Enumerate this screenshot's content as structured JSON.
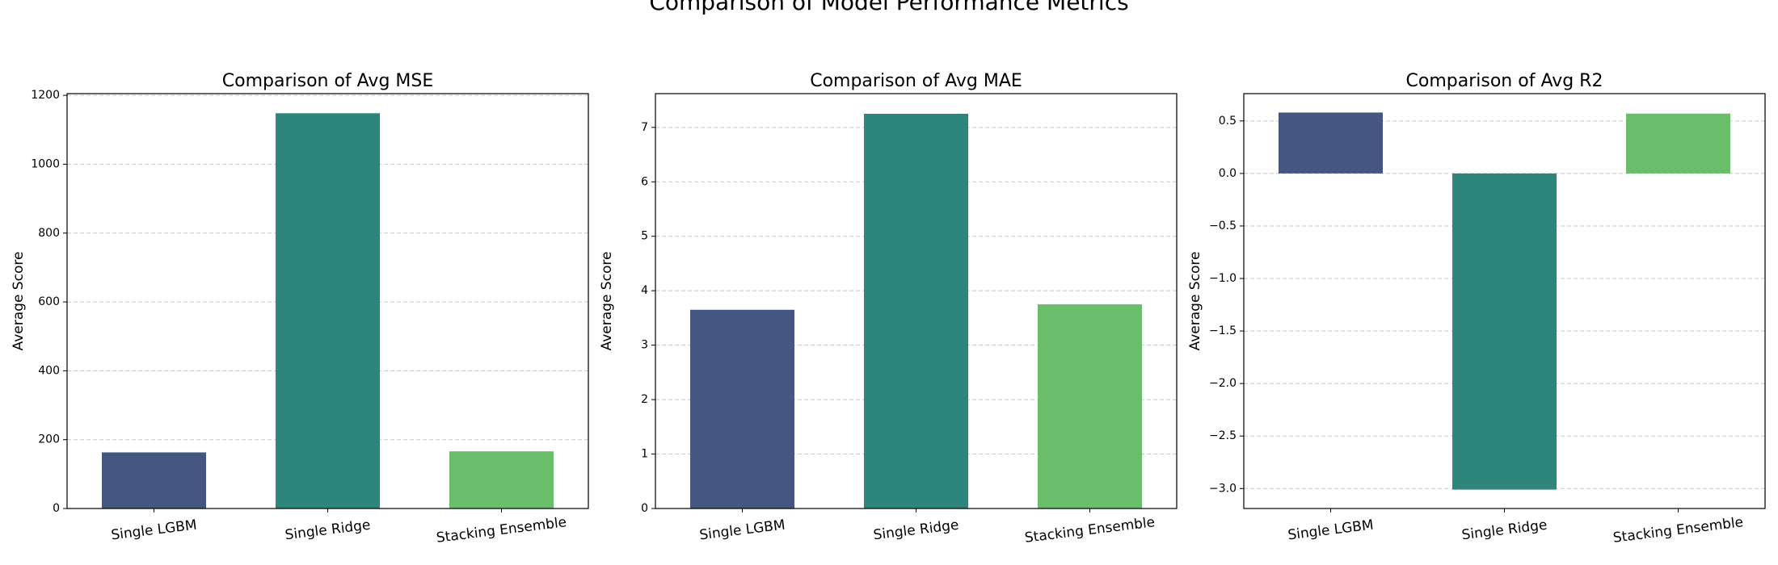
{
  "title": "Comparison of Model Performance Metrics",
  "chart_data": [
    {
      "type": "bar",
      "title": "Comparison of Avg MSE",
      "ylabel": "Average Score",
      "categories": [
        "Single LGBM",
        "Single Ridge",
        "Stacking Ensemble"
      ],
      "values": [
        163,
        1148,
        166
      ],
      "colors": [
        "#455681",
        "#2e857c",
        "#6abd6a"
      ],
      "ylim": [
        0,
        1205
      ],
      "yticks": [
        0,
        200,
        400,
        600,
        800,
        1000,
        1200
      ],
      "grid": true
    },
    {
      "type": "bar",
      "title": "Comparison of Avg MAE",
      "ylabel": "Average Score",
      "categories": [
        "Single LGBM",
        "Single Ridge",
        "Stacking Ensemble"
      ],
      "values": [
        3.65,
        7.25,
        3.75
      ],
      "colors": [
        "#455681",
        "#2e857c",
        "#6abd6a"
      ],
      "ylim": [
        0,
        7.62
      ],
      "yticks": [
        0,
        1,
        2,
        3,
        4,
        5,
        6,
        7
      ],
      "grid": true
    },
    {
      "type": "bar",
      "title": "Comparison of Avg R2",
      "ylabel": "Average Score",
      "categories": [
        "Single LGBM",
        "Single Ridge",
        "Stacking Ensemble"
      ],
      "values": [
        0.58,
        -3.01,
        0.57
      ],
      "colors": [
        "#455681",
        "#2e857c",
        "#6abd6a"
      ],
      "ylim": [
        -3.19,
        0.76
      ],
      "yticks": [
        {
          "value": -3.0,
          "label": "−3.0"
        },
        {
          "value": -2.5,
          "label": "−2.5"
        },
        {
          "value": -2.0,
          "label": "−2.0"
        },
        {
          "value": -1.5,
          "label": "−1.5"
        },
        {
          "value": -1.0,
          "label": "−1.0"
        },
        {
          "value": -0.5,
          "label": "−0.5"
        },
        {
          "value": 0.0,
          "label": "0.0"
        },
        {
          "value": 0.5,
          "label": "0.5"
        }
      ],
      "grid": true
    }
  ]
}
